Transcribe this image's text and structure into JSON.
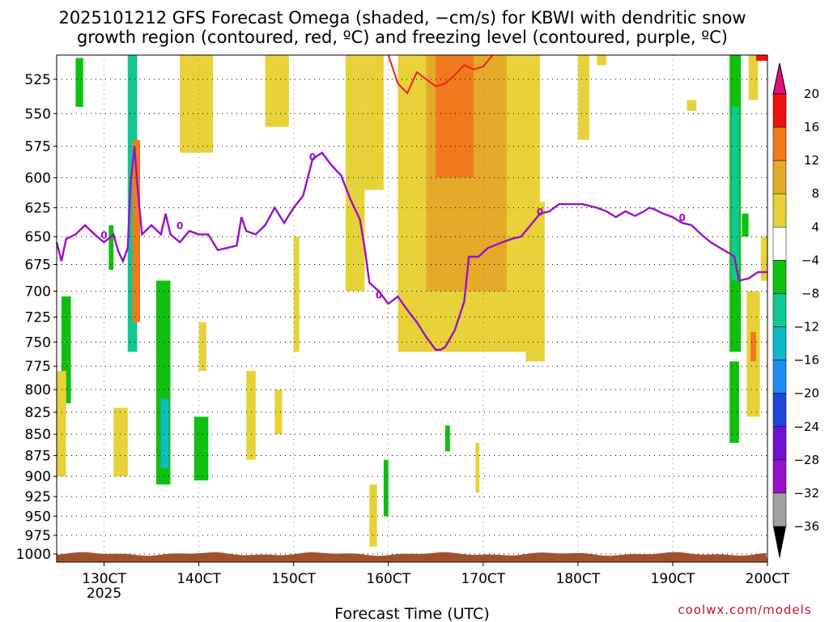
{
  "chart_data": {
    "type": "heatmap",
    "title_lines": [
      "2025101212 GFS Forecast Omega (shaded, −cm/s) for KBWI with dendritic snow",
      "growth region (contoured, red, ºC) and freezing level (contoured, purple, ºC)"
    ],
    "xlabel": "Forecast Time (UTC)",
    "credit": "coolwx.com/models",
    "x_ticks": [
      "130CT",
      "140CT",
      "150CT",
      "160CT",
      "170CT",
      "180CT",
      "190CT",
      "200CT"
    ],
    "x_ticks_sub": [
      "2025",
      "",
      "",
      "",
      "",
      "",
      "",
      ""
    ],
    "x_range_days": [
      12.5,
      20.0
    ],
    "y_ticks": [
      525,
      550,
      575,
      600,
      625,
      650,
      675,
      700,
      725,
      750,
      775,
      800,
      825,
      850,
      875,
      900,
      925,
      950,
      975,
      1000
    ],
    "y_range_hpa": [
      508,
      1000
    ],
    "y_scale": "log-pressure",
    "colorbar": {
      "labels": [
        "20",
        "16",
        "12",
        "8",
        "4",
        "−4",
        "−8",
        "−12",
        "−16",
        "−20",
        "−24",
        "−28",
        "−32",
        "−36"
      ],
      "colors": [
        "#f01010",
        "#f07a1e",
        "#e4aa28",
        "#e8d23a",
        "#ffffff",
        "#10c010",
        "#10c890",
        "#10b8c8",
        "#1e8cf0",
        "#1e46dc",
        "#7010d0",
        "#9810c8",
        "#a0a0a0"
      ],
      "top_arrow_color": "#e0107a",
      "bottom_arrow_color": "#000000"
    },
    "freezing_level": {
      "label": "0",
      "color": "#9a10c8",
      "points": [
        [
          12.5,
          655
        ],
        [
          12.55,
          672
        ],
        [
          12.6,
          652
        ],
        [
          12.7,
          648
        ],
        [
          12.8,
          640
        ],
        [
          12.9,
          648
        ],
        [
          13.0,
          655
        ],
        [
          13.1,
          648
        ],
        [
          13.15,
          663
        ],
        [
          13.2,
          672
        ],
        [
          13.25,
          660
        ],
        [
          13.28,
          605
        ],
        [
          13.32,
          575
        ],
        [
          13.35,
          605
        ],
        [
          13.4,
          648
        ],
        [
          13.5,
          640
        ],
        [
          13.6,
          648
        ],
        [
          13.65,
          630
        ],
        [
          13.7,
          648
        ],
        [
          13.8,
          655
        ],
        [
          13.9,
          645
        ],
        [
          14.0,
          648
        ],
        [
          14.1,
          648
        ],
        [
          14.2,
          662
        ],
        [
          14.3,
          660
        ],
        [
          14.4,
          658
        ],
        [
          14.45,
          633
        ],
        [
          14.5,
          645
        ],
        [
          14.6,
          648
        ],
        [
          14.7,
          640
        ],
        [
          14.8,
          625
        ],
        [
          14.9,
          638
        ],
        [
          15.0,
          625
        ],
        [
          15.1,
          615
        ],
        [
          15.2,
          585
        ],
        [
          15.3,
          580
        ],
        [
          15.4,
          590
        ],
        [
          15.5,
          598
        ],
        [
          15.6,
          618
        ],
        [
          15.7,
          635
        ],
        [
          15.75,
          660
        ],
        [
          15.8,
          692
        ],
        [
          15.9,
          700
        ],
        [
          16.0,
          712
        ],
        [
          16.1,
          705
        ],
        [
          16.2,
          718
        ],
        [
          16.3,
          730
        ],
        [
          16.4,
          745
        ],
        [
          16.5,
          758
        ],
        [
          16.55,
          758
        ],
        [
          16.6,
          755
        ],
        [
          16.7,
          738
        ],
        [
          16.8,
          710
        ],
        [
          16.85,
          668
        ],
        [
          16.95,
          668
        ],
        [
          17.05,
          660
        ],
        [
          17.2,
          655
        ],
        [
          17.3,
          652
        ],
        [
          17.4,
          650
        ],
        [
          17.5,
          640
        ],
        [
          17.6,
          630
        ],
        [
          17.7,
          628
        ],
        [
          17.8,
          622
        ],
        [
          17.95,
          622
        ],
        [
          18.05,
          622
        ],
        [
          18.2,
          625
        ],
        [
          18.3,
          628
        ],
        [
          18.4,
          633
        ],
        [
          18.5,
          628
        ],
        [
          18.6,
          632
        ],
        [
          18.7,
          628
        ],
        [
          18.75,
          625
        ],
        [
          18.8,
          626
        ],
        [
          18.9,
          630
        ],
        [
          19.0,
          633
        ],
        [
          19.1,
          638
        ],
        [
          19.2,
          640
        ],
        [
          19.3,
          648
        ],
        [
          19.4,
          655
        ],
        [
          19.5,
          660
        ],
        [
          19.6,
          665
        ],
        [
          19.65,
          668
        ],
        [
          19.7,
          690
        ],
        [
          19.8,
          688
        ],
        [
          19.9,
          682
        ],
        [
          20.0,
          682
        ]
      ]
    },
    "dendritic_growth_region": {
      "color": "#f02020",
      "points": [
        [
          16.0,
          508
        ],
        [
          16.1,
          528
        ],
        [
          16.2,
          535
        ],
        [
          16.3,
          520
        ],
        [
          16.4,
          525
        ],
        [
          16.5,
          530
        ],
        [
          16.6,
          528
        ],
        [
          16.7,
          522
        ],
        [
          16.8,
          515
        ],
        [
          16.9,
          518
        ],
        [
          17.0,
          516
        ],
        [
          17.1,
          508
        ]
      ]
    },
    "omega_regions": [
      {
        "x0": 13.8,
        "x1": 14.15,
        "y0": 508,
        "y1": 580,
        "v": 5
      },
      {
        "x0": 14.7,
        "x1": 14.95,
        "y0": 508,
        "y1": 560,
        "v": 5
      },
      {
        "x0": 15.55,
        "x1": 15.75,
        "y0": 508,
        "y1": 700,
        "v": 5
      },
      {
        "x0": 15.75,
        "x1": 15.95,
        "y0": 508,
        "y1": 610,
        "v": 5
      },
      {
        "x0": 16.1,
        "x1": 17.6,
        "y0": 508,
        "y1": 760,
        "v": 5
      },
      {
        "x0": 16.4,
        "x1": 17.25,
        "y0": 508,
        "y1": 700,
        "v": 9
      },
      {
        "x0": 16.5,
        "x1": 16.9,
        "y0": 508,
        "y1": 600,
        "v": 13
      },
      {
        "x0": 17.45,
        "x1": 17.65,
        "y0": 620,
        "y1": 770,
        "v": 5
      },
      {
        "x0": 18.0,
        "x1": 18.12,
        "y0": 508,
        "y1": 570,
        "v": 5
      },
      {
        "x0": 18.2,
        "x1": 18.3,
        "y0": 508,
        "y1": 515,
        "v": 5
      },
      {
        "x0": 19.15,
        "x1": 19.25,
        "y0": 540,
        "y1": 548,
        "v": 5
      },
      {
        "x0": 13.25,
        "x1": 13.35,
        "y0": 508,
        "y1": 760,
        "v": -10
      },
      {
        "x0": 13.3,
        "x1": 13.38,
        "y0": 570,
        "y1": 730,
        "v": 14
      },
      {
        "x0": 12.7,
        "x1": 12.78,
        "y0": 510,
        "y1": 545,
        "v": -6
      },
      {
        "x0": 13.55,
        "x1": 13.7,
        "y0": 690,
        "y1": 910,
        "v": -6
      },
      {
        "x0": 13.6,
        "x1": 13.68,
        "y0": 810,
        "y1": 890,
        "v": -12
      },
      {
        "x0": 12.55,
        "x1": 12.65,
        "y0": 705,
        "y1": 815,
        "v": -6
      },
      {
        "x0": 13.05,
        "x1": 13.1,
        "y0": 640,
        "y1": 680,
        "v": -6
      },
      {
        "x0": 13.95,
        "x1": 14.1,
        "y0": 830,
        "y1": 905,
        "v": -6
      },
      {
        "x0": 12.5,
        "x1": 12.6,
        "y0": 780,
        "y1": 900,
        "v": 5
      },
      {
        "x0": 13.1,
        "x1": 13.25,
        "y0": 820,
        "y1": 900,
        "v": 5
      },
      {
        "x0": 14.5,
        "x1": 14.6,
        "y0": 780,
        "y1": 880,
        "v": 5
      },
      {
        "x0": 14.8,
        "x1": 14.88,
        "y0": 800,
        "y1": 850,
        "v": 5
      },
      {
        "x0": 14.0,
        "x1": 14.08,
        "y0": 730,
        "y1": 780,
        "v": 5
      },
      {
        "x0": 15.0,
        "x1": 15.06,
        "y0": 650,
        "y1": 760,
        "v": 5
      },
      {
        "x0": 15.8,
        "x1": 15.88,
        "y0": 910,
        "y1": 990,
        "v": 5
      },
      {
        "x0": 15.95,
        "x1": 16.0,
        "y0": 880,
        "y1": 950,
        "v": -6
      },
      {
        "x0": 16.6,
        "x1": 16.65,
        "y0": 840,
        "y1": 870,
        "v": -6
      },
      {
        "x0": 16.92,
        "x1": 16.96,
        "y0": 860,
        "y1": 920,
        "v": 5
      },
      {
        "x0": 19.6,
        "x1": 19.72,
        "y0": 508,
        "y1": 760,
        "v": -6
      },
      {
        "x0": 19.62,
        "x1": 19.7,
        "y0": 545,
        "y1": 690,
        "v": -10
      },
      {
        "x0": 19.6,
        "x1": 19.7,
        "y0": 770,
        "y1": 860,
        "v": -6
      },
      {
        "x0": 19.73,
        "x1": 19.8,
        "y0": 630,
        "y1": 650,
        "v": -6
      },
      {
        "x0": 19.78,
        "x1": 19.92,
        "y0": 700,
        "y1": 830,
        "v": 5
      },
      {
        "x0": 19.82,
        "x1": 19.88,
        "y0": 740,
        "y1": 770,
        "v": 13
      },
      {
        "x0": 19.8,
        "x1": 19.9,
        "y0": 508,
        "y1": 540,
        "v": 5
      },
      {
        "x0": 19.93,
        "x1": 20.0,
        "y0": 650,
        "y1": 690,
        "v": 5
      },
      {
        "x0": 19.88,
        "x1": 20.0,
        "y0": 508,
        "y1": 512,
        "v": 18
      }
    ]
  }
}
